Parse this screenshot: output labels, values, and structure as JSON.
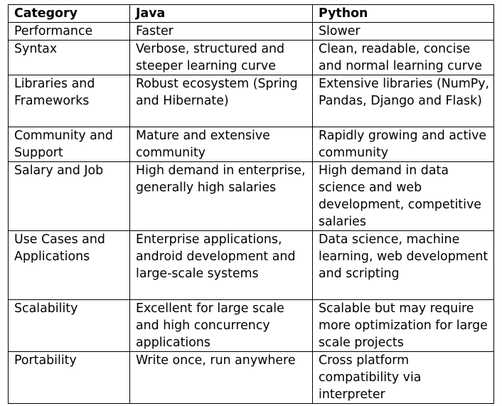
{
  "table": {
    "headers": [
      "Category",
      "Java",
      "Python"
    ],
    "rows": [
      [
        "Performance",
        "Faster",
        "Slower"
      ],
      [
        "Syntax",
        "Verbose, structured and steeper learning curve",
        "Clean, readable, concise and normal learning curve"
      ],
      [
        "Libraries and Frameworks",
        "Robust ecosystem (Spring and Hibernate)",
        "Extensive libraries (NumPy, Pandas, Django and Flask)"
      ],
      [
        "Community and Support",
        "Mature and extensive community",
        "Rapidly growing and active community"
      ],
      [
        "Salary and Job",
        "High demand in enterprise, generally high salaries",
        "High demand in data science and web development, competitive salaries"
      ],
      [
        "Use Cases and Applications",
        "Enterprise applications, android development and large-scale systems",
        "Data science, machine learning, web development and scripting"
      ],
      [
        "Scalability",
        "Excellent for large scale and high concurrency applications",
        "Scalable but may require more optimization for large scale projects"
      ],
      [
        "Portability",
        "Write once, run anywhere",
        "Cross platform compatibility via interpreter"
      ]
    ]
  }
}
